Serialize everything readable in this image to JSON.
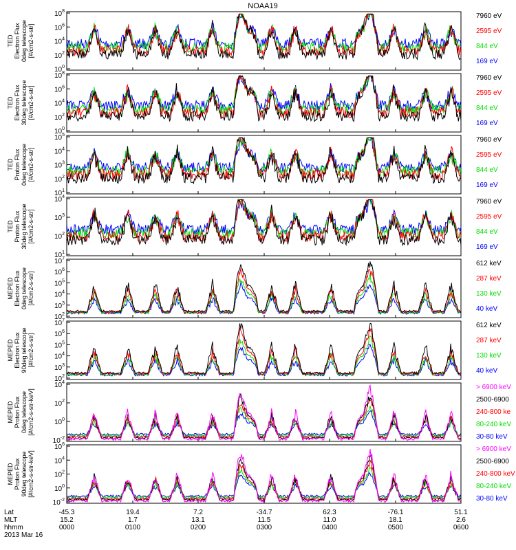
{
  "title": "NOAA19",
  "panels": [
    {
      "ylabel": [
        "TED",
        "Electron Flux",
        "0deg telescope",
        "[#/cm2-s-str]"
      ],
      "yticks": [
        "10^0",
        "10^2",
        "10^4",
        "10^6",
        "10^8"
      ],
      "legend": [
        {
          "label": "7960 eV",
          "color": "#000000"
        },
        {
          "label": "2595 eV",
          "color": "#ff0000"
        },
        {
          "label": "844 eV",
          "color": "#00dd00"
        },
        {
          "label": "169 eV",
          "color": "#0000ff"
        }
      ]
    },
    {
      "ylabel": [
        "TED",
        "Electron Flux",
        "30deg telescope",
        "[#/cm2-s-str]"
      ],
      "yticks": [
        "10^0",
        "10^2",
        "10^4",
        "10^6",
        "10^8"
      ],
      "legend": [
        {
          "label": "7960 eV",
          "color": "#000000"
        },
        {
          "label": "2595 eV",
          "color": "#ff0000"
        },
        {
          "label": "844 eV",
          "color": "#00dd00"
        },
        {
          "label": "169 eV",
          "color": "#0000ff"
        }
      ]
    },
    {
      "ylabel": [
        "TED",
        "Proton Flux",
        "0deg telescope",
        "[#/cm2-s-str]"
      ],
      "yticks": [
        "10^1",
        "10^2",
        "10^3",
        "10^4",
        "10^5"
      ],
      "legend": [
        {
          "label": "7960 eV",
          "color": "#000000"
        },
        {
          "label": "2595 eV",
          "color": "#ff0000"
        },
        {
          "label": "844 eV",
          "color": "#00dd00"
        },
        {
          "label": "169 eV",
          "color": "#0000ff"
        }
      ]
    },
    {
      "ylabel": [
        "TED",
        "Proton Flux",
        "30deg telescope",
        "[#/cm2-s-str]"
      ],
      "yticks": [
        "10^1",
        "10^2",
        "10^3",
        "10^4"
      ],
      "legend": [
        {
          "label": "7960 eV",
          "color": "#000000"
        },
        {
          "label": "2595 eV",
          "color": "#ff0000"
        },
        {
          "label": "844 eV",
          "color": "#00dd00"
        },
        {
          "label": "169 eV",
          "color": "#0000ff"
        }
      ]
    },
    {
      "ylabel": [
        "MEPED",
        "Electron Flux",
        "0deg telescope",
        "[#/cm2-s-str]"
      ],
      "yticks": [
        "10^2",
        "10^3",
        "10^4",
        "10^5",
        "10^6",
        "10^7"
      ],
      "legend": [
        {
          "label": "612 keV",
          "color": "#000000"
        },
        {
          "label": "287 keV",
          "color": "#ff0000"
        },
        {
          "label": "130 keV",
          "color": "#00dd00"
        },
        {
          "label": "40 keV",
          "color": "#0000ff"
        }
      ]
    },
    {
      "ylabel": [
        "MEPED",
        "Electron Flux",
        "90deg telescope",
        "[#/cm2-s-str]"
      ],
      "yticks": [
        "10^2",
        "10^3",
        "10^4",
        "10^5",
        "10^6",
        "10^7"
      ],
      "legend": [
        {
          "label": "612 keV",
          "color": "#000000"
        },
        {
          "label": "287 keV",
          "color": "#ff0000"
        },
        {
          "label": "130 keV",
          "color": "#00dd00"
        },
        {
          "label": "40 keV",
          "color": "#0000ff"
        }
      ]
    },
    {
      "ylabel": [
        "MEPED",
        "Proton Flux",
        "0deg telescope",
        "[#/cm2-s-str-keV]"
      ],
      "yticks": [
        "10^-2",
        "10^0",
        "10^2",
        "10^4"
      ],
      "legend": [
        {
          "label": "> 6900 keV",
          "color": "#ff00ff"
        },
        {
          "label": "2500-6900",
          "color": "#000000"
        },
        {
          "label": "240-800 ke",
          "color": "#ff0000"
        },
        {
          "label": "80-240 keV",
          "color": "#00dd00"
        },
        {
          "label": "30-80 keV",
          "color": "#0000ff"
        }
      ]
    },
    {
      "ylabel": [
        "MEPED",
        "Proton Flux",
        "90deg telescope",
        "[#/cm2-s-str-keV]"
      ],
      "yticks": [
        "10^-2",
        "10^0",
        "10^2",
        "10^4",
        "10^6"
      ],
      "legend": [
        {
          "label": "> 6900 keV",
          "color": "#ff00ff"
        },
        {
          "label": "2500-6900",
          "color": "#000000"
        },
        {
          "label": "240-800 keV",
          "color": "#ff0000"
        },
        {
          "label": "80-240 keV",
          "color": "#00dd00"
        },
        {
          "label": "30-80 keV",
          "color": "#0000ff"
        }
      ]
    }
  ],
  "xaxis": {
    "row_labels": [
      "Lat",
      "MLT",
      "hhmm",
      "2013 Mar 16"
    ],
    "ticks": [
      {
        "lat": "-45.3",
        "mlt": "15.2",
        "hhmm": "0000"
      },
      {
        "lat": "19.4",
        "mlt": "1.7",
        "hhmm": "0100"
      },
      {
        "lat": "7.2",
        "mlt": "13.1",
        "hhmm": "0200"
      },
      {
        "lat": "-34.7",
        "mlt": "11.5",
        "hhmm": "0300"
      },
      {
        "lat": "62.3",
        "mlt": "11.0",
        "hhmm": "0400"
      },
      {
        "lat": "-76.1",
        "mlt": "18.1",
        "hhmm": "0500"
      },
      {
        "lat": "51.1",
        "mlt": "2.6",
        "hhmm": "0600"
      }
    ]
  },
  "chart_data": {
    "type": "line",
    "title": "NOAA19",
    "x": [
      "0000",
      "0100",
      "0200",
      "0300",
      "0400",
      "0500",
      "0600"
    ],
    "xlabel": "hhmm",
    "yscale": "log",
    "grid": false,
    "legend_placement": "right of each panel",
    "panels": [
      {
        "name": "TED Electron Flux 0deg telescope",
        "ylim": [
          1,
          100000000
        ],
        "series": [
          "7960 eV",
          "2595 eV",
          "844 eV",
          "169 eV"
        ]
      },
      {
        "name": "TED Electron Flux 30deg telescope",
        "ylim": [
          1,
          100000000
        ],
        "series": [
          "7960 eV",
          "2595 eV",
          "844 eV",
          "169 eV"
        ]
      },
      {
        "name": "TED Proton Flux 0deg telescope",
        "ylim": [
          10,
          100000
        ],
        "series": [
          "7960 eV",
          "2595 eV",
          "844 eV",
          "169 eV"
        ]
      },
      {
        "name": "TED Proton Flux 30deg telescope",
        "ylim": [
          10,
          10000
        ],
        "series": [
          "7960 eV",
          "2595 eV",
          "844 eV",
          "169 eV"
        ]
      },
      {
        "name": "MEPED Electron Flux 0deg telescope",
        "ylim": [
          100,
          10000000
        ],
        "series": [
          "612 keV",
          "287 keV",
          "130 keV",
          "40 keV"
        ]
      },
      {
        "name": "MEPED Electron Flux 90deg telescope",
        "ylim": [
          100,
          10000000
        ],
        "series": [
          "612 keV",
          "287 keV",
          "130 keV",
          "40 keV"
        ]
      },
      {
        "name": "MEPED Proton Flux 0deg telescope",
        "ylim": [
          0.01,
          10000
        ],
        "series": [
          "> 6900 keV",
          "2500-6900",
          "240-800 ke",
          "80-240 keV",
          "30-80 keV"
        ]
      },
      {
        "name": "MEPED Proton Flux 90deg telescope",
        "ylim": [
          0.01,
          1000000
        ],
        "series": [
          "> 6900 keV",
          "2500-6900",
          "240-800 keV",
          "80-240 keV",
          "30-80 keV"
        ]
      }
    ]
  }
}
